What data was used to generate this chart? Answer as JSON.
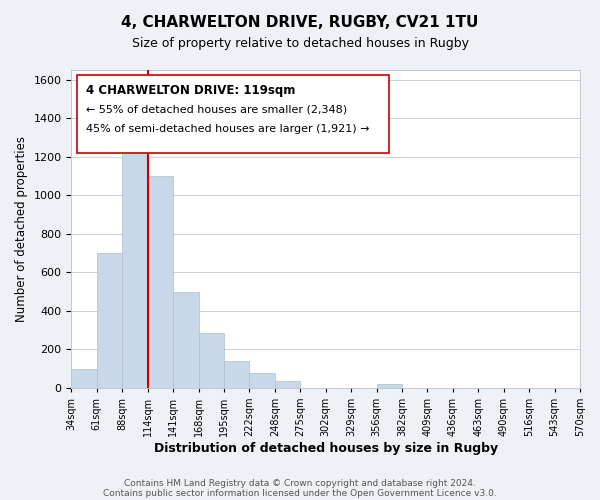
{
  "title": "4, CHARWELTON DRIVE, RUGBY, CV21 1TU",
  "subtitle": "Size of property relative to detached houses in Rugby",
  "xlabel": "Distribution of detached houses by size in Rugby",
  "ylabel": "Number of detached properties",
  "bar_values": [
    100,
    700,
    1340,
    1100,
    500,
    285,
    140,
    80,
    35,
    0,
    0,
    0,
    20,
    0,
    0,
    0,
    0,
    0,
    0,
    0
  ],
  "bar_labels": [
    "34sqm",
    "61sqm",
    "88sqm",
    "114sqm",
    "141sqm",
    "168sqm",
    "195sqm",
    "222sqm",
    "248sqm",
    "275sqm",
    "302sqm",
    "329sqm",
    "356sqm",
    "382sqm",
    "409sqm",
    "436sqm",
    "463sqm",
    "490sqm",
    "516sqm",
    "543sqm",
    "570sqm"
  ],
  "bar_color": "#c8d8e8",
  "bar_edge_color": "#a8c0d0",
  "vline_x": 3,
  "vline_color": "#cc0000",
  "annotation_line1": "4 CHARWELTON DRIVE: 119sqm",
  "annotation_line2": "← 55% of detached houses are smaller (2,348)",
  "annotation_line3": "45% of semi-detached houses are larger (1,921) →",
  "ylim": [
    0,
    1650
  ],
  "yticks": [
    0,
    200,
    400,
    600,
    800,
    1000,
    1200,
    1400,
    1600
  ],
  "footer_line1": "Contains HM Land Registry data © Crown copyright and database right 2024.",
  "footer_line2": "Contains public sector information licensed under the Open Government Licence v3.0.",
  "background_color": "#eef2f6",
  "plot_bg_color": "#ffffff"
}
